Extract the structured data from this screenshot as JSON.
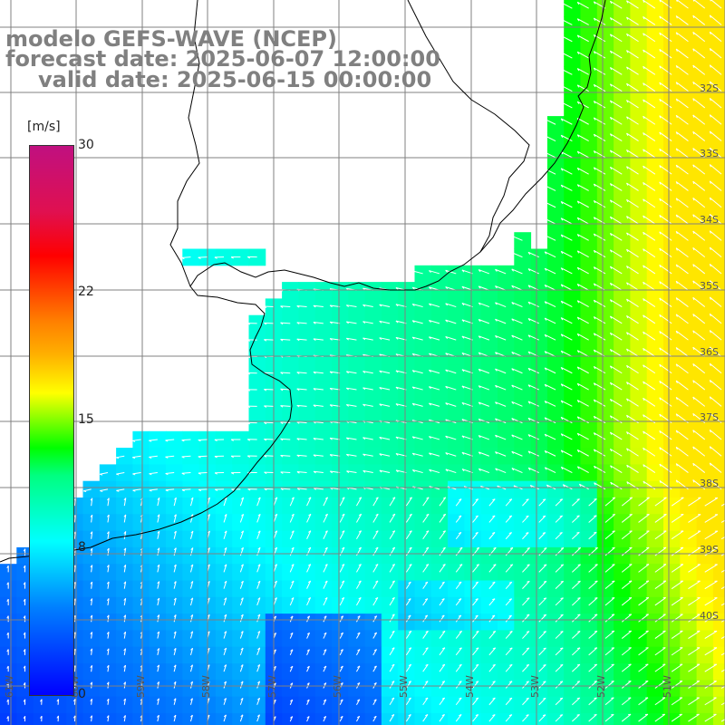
{
  "titles": {
    "model": "modelo GEFS-WAVE (NCEP)",
    "forecast": "forecast date: 2025-06-07 12:00:00",
    "valid": "valid date: 2025-06-15 00:00:00"
  },
  "colorbar": {
    "unit": "[m/s]",
    "ticks": [
      {
        "label": "30",
        "value": 30
      },
      {
        "label": "22",
        "value": 22
      },
      {
        "label": "15",
        "value": 15
      },
      {
        "label": "8",
        "value": 8
      },
      {
        "label": "0",
        "value": 0
      }
    ],
    "colors": [
      "#0000ff",
      "#00ffff",
      "#00ff00",
      "#ffff00",
      "#ff0000",
      "#c01080"
    ]
  },
  "map": {
    "lat_labels": [
      "32S",
      "33S",
      "34S",
      "35S",
      "36S",
      "37S",
      "38S",
      "39S",
      "40S"
    ],
    "lon_labels": [
      "61W",
      "60W",
      "59W",
      "58W",
      "57W",
      "56W",
      "55W",
      "54W",
      "53W",
      "52W",
      "51W"
    ],
    "gridline_color": "#808080",
    "coastline_color": "#000000",
    "arrow_color": "#ffffff"
  }
}
